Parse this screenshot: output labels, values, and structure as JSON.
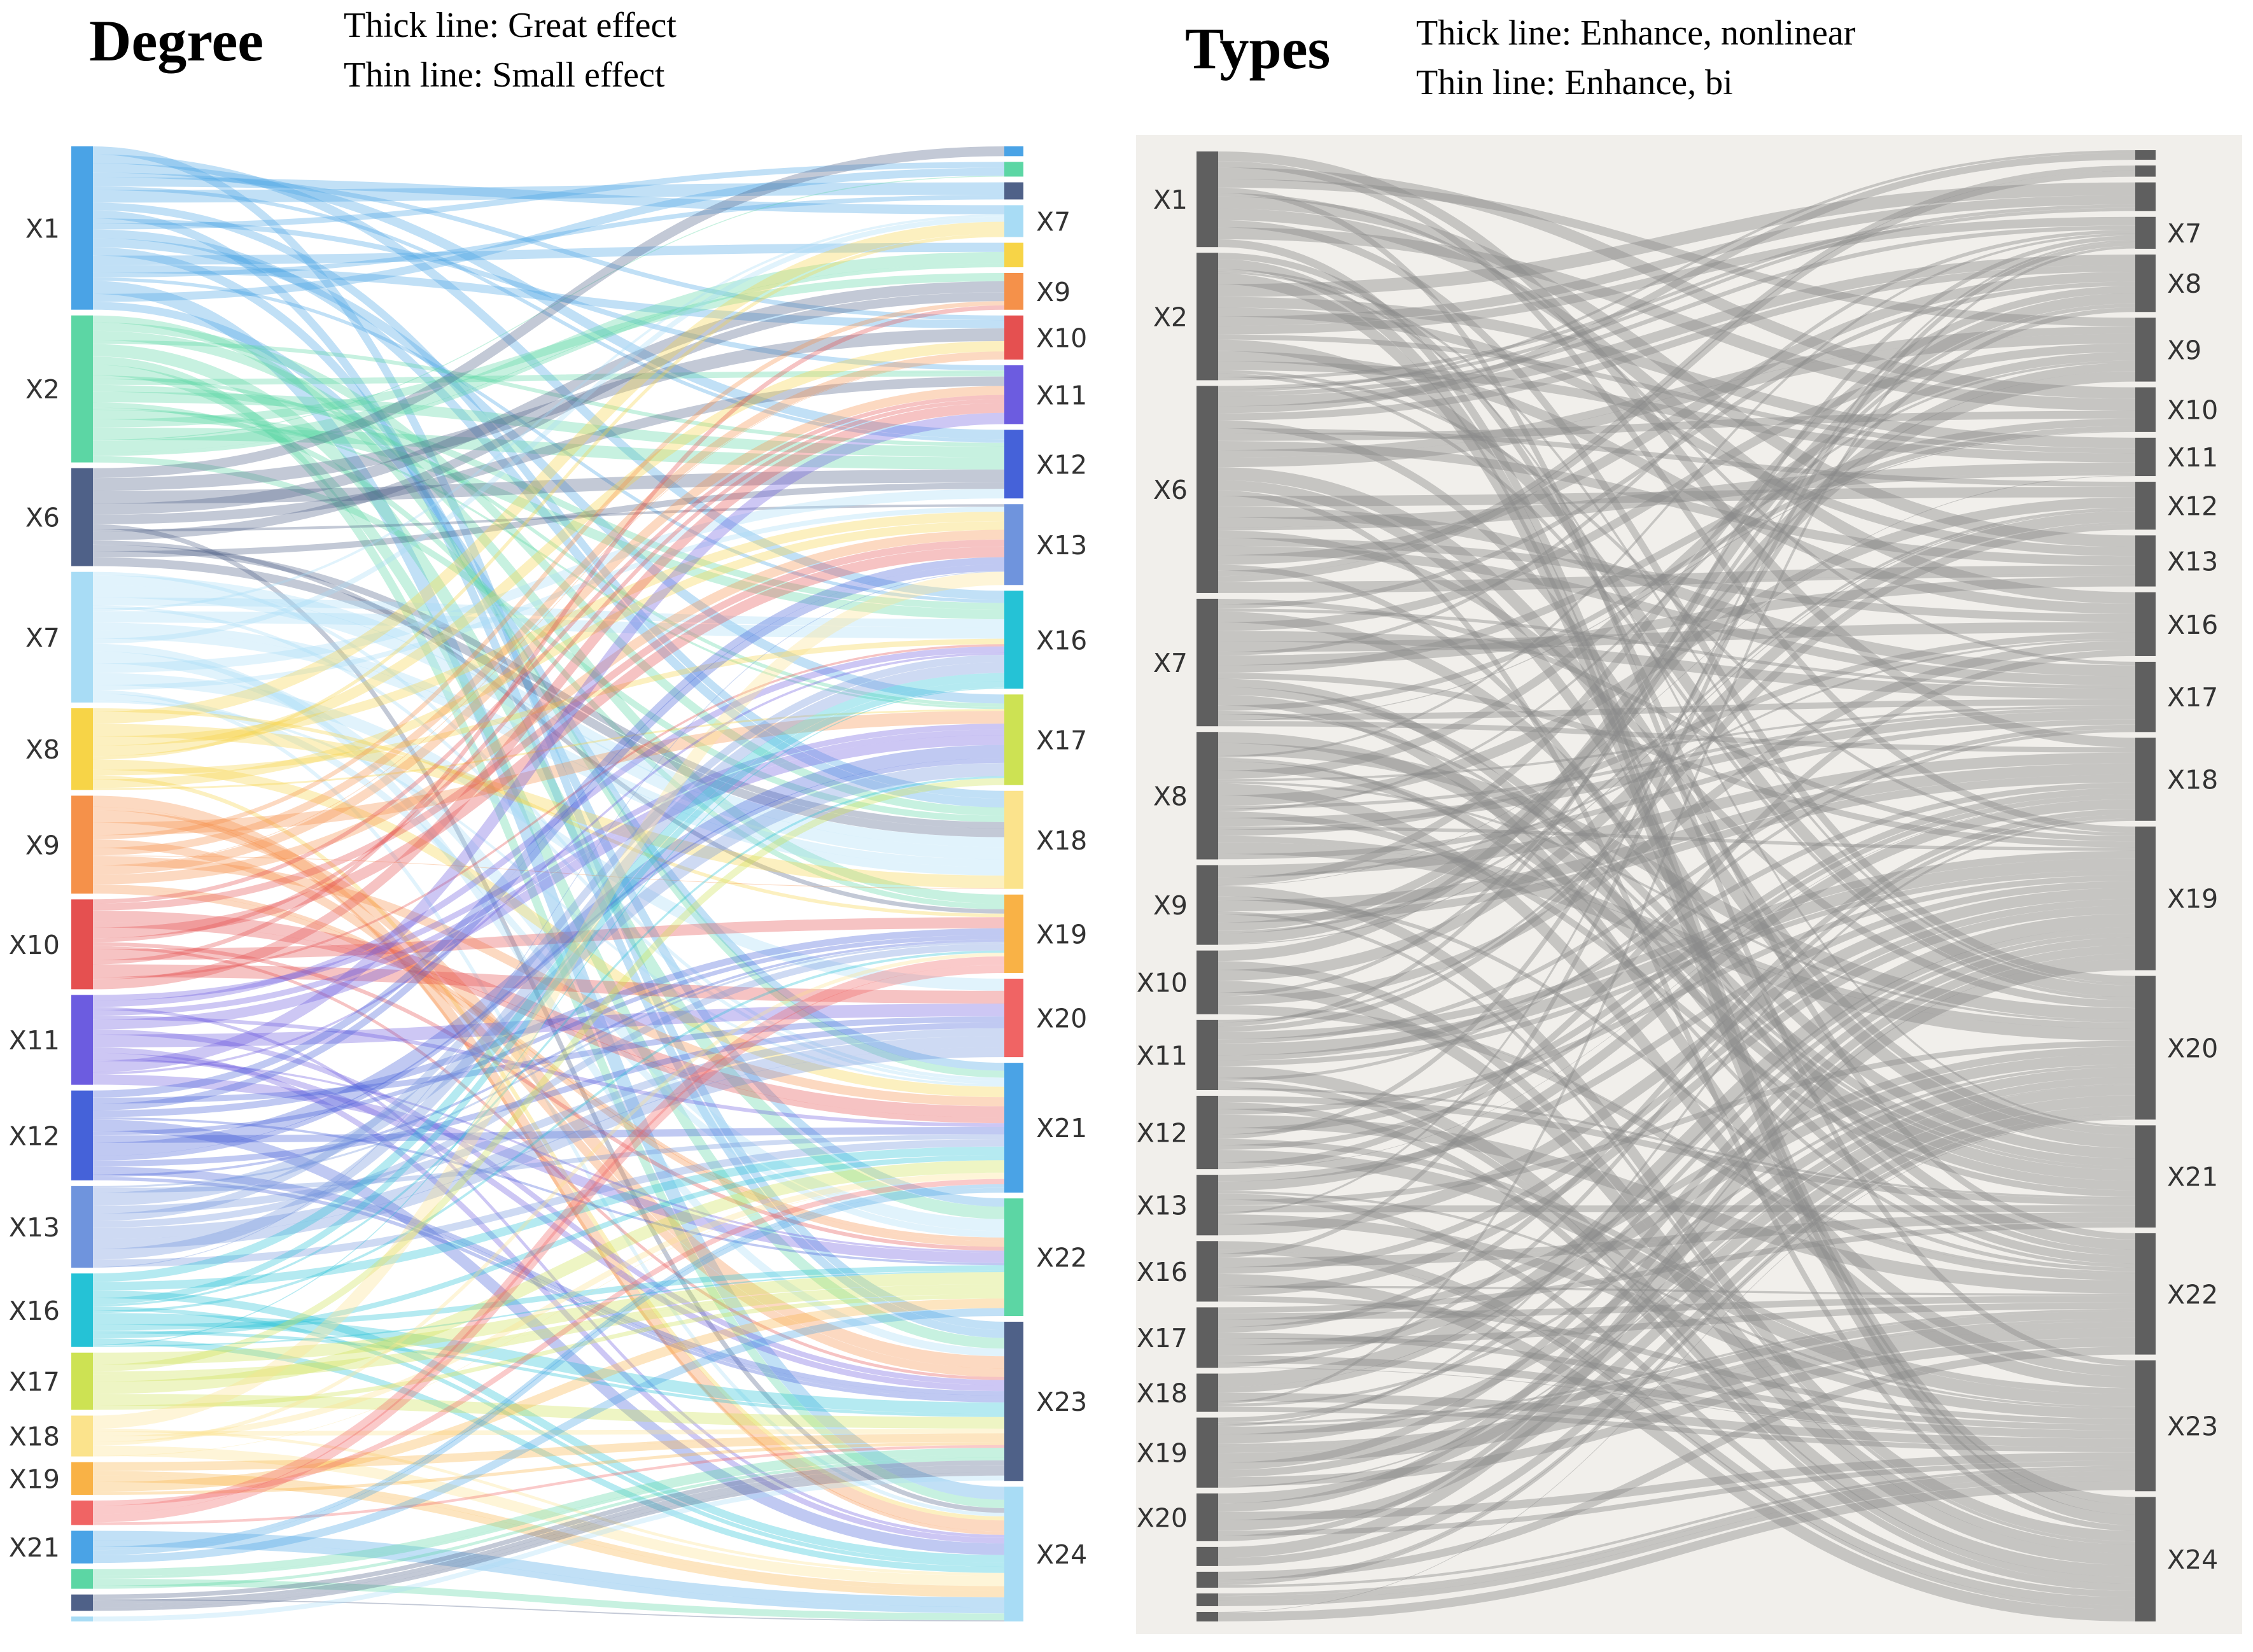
{
  "panels": {
    "degree": {
      "title": "Degree",
      "legend": [
        "Thick line: Great effect",
        "Thin line: Small effect"
      ]
    },
    "types": {
      "title": "Types",
      "legend": [
        "Thick line: Enhance, nonlinear",
        "Thin line: Enhance, bi"
      ]
    }
  },
  "chart_data": [
    {
      "type": "sankey",
      "title": "Degree",
      "legend": [
        "Thick line: Great effect",
        "Thin line: Small effect"
      ],
      "link_style": "colored by source node",
      "sources": [
        {
          "label": "X1",
          "value": 10,
          "color": "#4aa3e6"
        },
        {
          "label": "X2",
          "value": 9,
          "color": "#5cd6a4"
        },
        {
          "label": "X6",
          "value": 6,
          "color": "#4f6188"
        },
        {
          "label": "X7",
          "value": 8,
          "color": "#a8dcf5"
        },
        {
          "label": "X8",
          "value": 5,
          "color": "#f7d447"
        },
        {
          "label": "X9",
          "value": 6,
          "color": "#f5914a"
        },
        {
          "label": "X10",
          "value": 5.5,
          "color": "#e55050"
        },
        {
          "label": "X11",
          "value": 5.5,
          "color": "#6c5ce0"
        },
        {
          "label": "X12",
          "value": 5.5,
          "color": "#4562d9"
        },
        {
          "label": "X13",
          "value": 5,
          "color": "#6f94dd"
        },
        {
          "label": "X16",
          "value": 4.5,
          "color": "#25c2d6"
        },
        {
          "label": "X17",
          "value": 3.5,
          "color": "#cde253"
        },
        {
          "label": "X18",
          "value": 2.5,
          "color": "#fbe38c"
        },
        {
          "label": "X19",
          "value": 2,
          "color": "#f9b246"
        },
        {
          "label": "",
          "value": 1.5,
          "color": "#f06464"
        },
        {
          "label": "X21",
          "value": 2,
          "color": "#4aa3e6"
        },
        {
          "label": "",
          "value": 1.2,
          "color": "#5cd6a4"
        },
        {
          "label": "",
          "value": 1,
          "color": "#4f6188"
        },
        {
          "label": "",
          "value": 0.3,
          "color": "#a8dcf5"
        }
      ],
      "targets": [
        {
          "label": "",
          "value": 0.4,
          "color": "#4aa3e6"
        },
        {
          "label": "",
          "value": 0.6,
          "color": "#5cd6a4"
        },
        {
          "label": "",
          "value": 0.7,
          "color": "#4f6188"
        },
        {
          "label": "X7",
          "value": 1.3,
          "color": "#a8dcf5"
        },
        {
          "label": "",
          "value": 1,
          "color": "#f7d447"
        },
        {
          "label": "X9",
          "value": 1.5,
          "color": "#f5914a"
        },
        {
          "label": "X10",
          "value": 1.8,
          "color": "#e55050"
        },
        {
          "label": "X11",
          "value": 2.4,
          "color": "#6c5ce0"
        },
        {
          "label": "X12",
          "value": 2.8,
          "color": "#4562d9"
        },
        {
          "label": "X13",
          "value": 3.3,
          "color": "#6f94dd"
        },
        {
          "label": "X16",
          "value": 4,
          "color": "#25c2d6"
        },
        {
          "label": "X17",
          "value": 3.7,
          "color": "#cde253"
        },
        {
          "label": "X18",
          "value": 4,
          "color": "#fbe38c"
        },
        {
          "label": "X19",
          "value": 3.2,
          "color": "#f9b246"
        },
        {
          "label": "X20",
          "value": 3.2,
          "color": "#f06464"
        },
        {
          "label": "X21",
          "value": 5.3,
          "color": "#4aa3e6"
        },
        {
          "label": "X22",
          "value": 4.8,
          "color": "#5cd6a4"
        },
        {
          "label": "X23",
          "value": 6.5,
          "color": "#4f6188"
        },
        {
          "label": "X24",
          "value": 5.5,
          "color": "#a8dcf5"
        }
      ]
    },
    {
      "type": "sankey",
      "title": "Types",
      "legend": [
        "Thick line: Enhance, nonlinear",
        "Thin line: Enhance, bi"
      ],
      "link_style": "grey",
      "colors": {
        "node": "#5f5f5f",
        "link": "#8a8a8a",
        "background": "#f1efeb"
      },
      "sources": [
        {
          "label": "X1",
          "value": 3
        },
        {
          "label": "X2",
          "value": 4
        },
        {
          "label": "X6",
          "value": 6.5
        },
        {
          "label": "X7",
          "value": 4
        },
        {
          "label": "X8",
          "value": 4
        },
        {
          "label": "X9",
          "value": 2.5
        },
        {
          "label": "X10",
          "value": 2
        },
        {
          "label": "X11",
          "value": 2.2
        },
        {
          "label": "X12",
          "value": 2.3
        },
        {
          "label": "X13",
          "value": 1.9
        },
        {
          "label": "X16",
          "value": 1.9
        },
        {
          "label": "X17",
          "value": 1.9
        },
        {
          "label": "X18",
          "value": 1.2
        },
        {
          "label": "X19",
          "value": 2.2
        },
        {
          "label": "X20",
          "value": 1.5
        },
        {
          "label": "",
          "value": 0.6
        },
        {
          "label": "",
          "value": 0.5
        },
        {
          "label": "",
          "value": 0.4
        },
        {
          "label": "",
          "value": 0.3
        }
      ],
      "targets": [
        {
          "label": "",
          "value": 0.3
        },
        {
          "label": "",
          "value": 0.35
        },
        {
          "label": "",
          "value": 0.9
        },
        {
          "label": "X7",
          "value": 1
        },
        {
          "label": "X8",
          "value": 1.8
        },
        {
          "label": "X9",
          "value": 2
        },
        {
          "label": "X10",
          "value": 1.4
        },
        {
          "label": "X11",
          "value": 1.2
        },
        {
          "label": "X12",
          "value": 1.5
        },
        {
          "label": "X13",
          "value": 1.6
        },
        {
          "label": "X16",
          "value": 2
        },
        {
          "label": "X17",
          "value": 2.2
        },
        {
          "label": "X18",
          "value": 2.6
        },
        {
          "label": "X19",
          "value": 4.5
        },
        {
          "label": "X20",
          "value": 4.5
        },
        {
          "label": "X21",
          "value": 3.2
        },
        {
          "label": "X22",
          "value": 3.8
        },
        {
          "label": "X23",
          "value": 4.1
        },
        {
          "label": "X24",
          "value": 3.9
        }
      ]
    }
  ]
}
